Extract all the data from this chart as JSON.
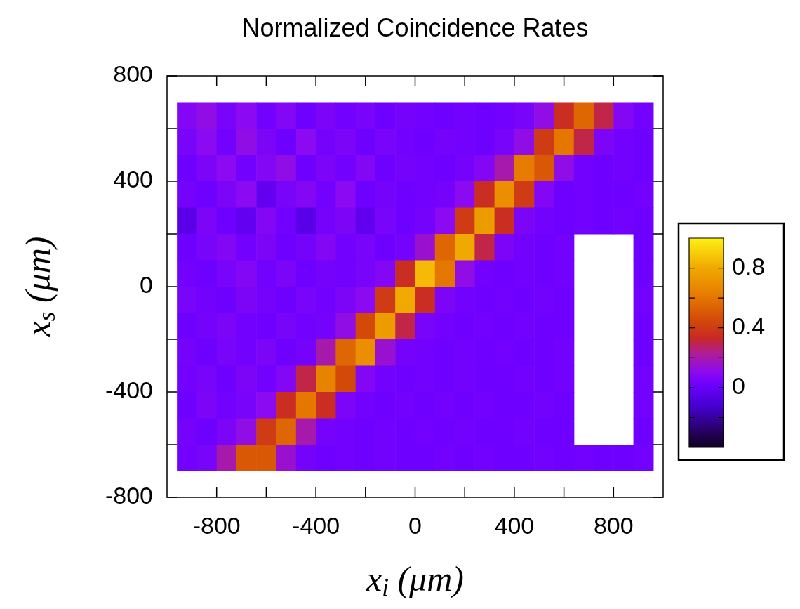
{
  "chart_data": {
    "type": "heatmap",
    "title": "Normalized Coincidence Rates",
    "xlabel": "x$_{i}$ (μm)",
    "ylabel": "x$_{s}$ (μm)",
    "x": [
      -920,
      -840,
      -760,
      -680,
      -600,
      -520,
      -440,
      -360,
      -280,
      -200,
      -120,
      -40,
      40,
      120,
      200,
      280,
      360,
      440,
      520,
      600,
      680,
      760,
      840,
      920
    ],
    "y": [
      650,
      550,
      450,
      350,
      250,
      150,
      50,
      -50,
      -150,
      -250,
      -350,
      -450,
      -550,
      -650
    ],
    "cells": [
      [
        0.08,
        0.12,
        0.05,
        0.1,
        0.03,
        0.08,
        0.02,
        0.06,
        0.03,
        0.05,
        0.02,
        0.04,
        0.03,
        0.02,
        0.03,
        0.02,
        0.03,
        0.05,
        0.12,
        0.35,
        0.55,
        0.3,
        0.08,
        0.03
      ],
      [
        0.05,
        0.1,
        0.03,
        0.12,
        0.06,
        0.02,
        0.1,
        0.04,
        0.06,
        0.02,
        0.05,
        0.03,
        0.02,
        0.04,
        0.03,
        0.02,
        0.05,
        0.12,
        0.4,
        0.6,
        0.3,
        0.06,
        0.03,
        0.02
      ],
      [
        0.02,
        0.06,
        0.1,
        0.03,
        0.08,
        0.12,
        0.02,
        0.06,
        0.03,
        0.08,
        0.02,
        0.04,
        0.03,
        0.02,
        0.04,
        0.08,
        0.2,
        0.62,
        0.5,
        0.12,
        0.03,
        0.02,
        0.03,
        0.02
      ],
      [
        0.04,
        0.02,
        0.06,
        0.1,
        -0.02,
        0.05,
        0.08,
        0.03,
        0.1,
        0.02,
        0.04,
        0.02,
        0.03,
        0.04,
        0.1,
        0.35,
        0.7,
        0.4,
        0.08,
        0.02,
        0.03,
        0.02,
        0.02,
        0.03
      ],
      [
        -0.05,
        0.06,
        0.02,
        -0.02,
        0.08,
        0.03,
        -0.05,
        0.04,
        0.06,
        -0.03,
        0.05,
        0.02,
        0.04,
        0.1,
        0.4,
        0.75,
        0.35,
        0.06,
        0.03,
        0.02,
        0.03,
        0.02,
        0.03,
        0.02
      ],
      [
        0.02,
        0.05,
        0.08,
        0.03,
        0.06,
        0.02,
        0.04,
        0.08,
        0.03,
        0.05,
        0.02,
        0.04,
        0.15,
        0.55,
        0.8,
        0.3,
        0.06,
        0.03,
        0.02,
        0.03,
        null,
        null,
        null,
        0.02
      ],
      [
        0.03,
        0.02,
        0.05,
        0.08,
        0.03,
        0.06,
        0.02,
        0.04,
        0.03,
        0.05,
        0.08,
        0.35,
        0.85,
        0.6,
        0.12,
        0.03,
        0.02,
        0.03,
        0.02,
        0.03,
        null,
        null,
        null,
        0.02
      ],
      [
        0.05,
        0.03,
        0.02,
        0.06,
        0.04,
        0.02,
        0.05,
        0.03,
        0.06,
        0.1,
        0.4,
        0.8,
        0.35,
        0.06,
        0.03,
        0.02,
        0.03,
        0.02,
        0.03,
        0.02,
        null,
        null,
        null,
        0.03
      ],
      [
        0.02,
        0.04,
        0.06,
        0.03,
        0.02,
        0.05,
        0.03,
        0.04,
        0.12,
        0.45,
        0.75,
        0.3,
        0.05,
        0.03,
        0.02,
        0.03,
        0.02,
        0.03,
        0.02,
        0.02,
        null,
        null,
        null,
        0.02
      ],
      [
        0.04,
        0.02,
        0.05,
        0.03,
        0.06,
        0.02,
        0.04,
        0.2,
        0.55,
        0.7,
        0.15,
        0.04,
        0.03,
        0.02,
        0.03,
        0.02,
        0.03,
        0.02,
        0.02,
        0.03,
        null,
        null,
        null,
        0.02
      ],
      [
        0.03,
        0.05,
        0.02,
        0.06,
        0.03,
        0.08,
        0.3,
        0.65,
        0.45,
        0.08,
        0.03,
        0.02,
        0.03,
        0.02,
        0.03,
        0.02,
        0.02,
        0.03,
        0.02,
        0.03,
        null,
        null,
        null,
        0.03
      ],
      [
        0.02,
        0.06,
        0.03,
        0.05,
        0.1,
        0.35,
        0.6,
        0.35,
        0.06,
        0.03,
        0.02,
        0.03,
        0.02,
        0.03,
        0.02,
        0.03,
        0.02,
        0.02,
        0.03,
        0.02,
        null,
        null,
        null,
        0.03
      ],
      [
        0.04,
        0.02,
        0.06,
        0.12,
        0.4,
        0.55,
        0.2,
        0.04,
        0.03,
        0.02,
        0.03,
        0.02,
        0.03,
        0.02,
        0.03,
        0.02,
        0.02,
        0.03,
        0.02,
        0.02,
        null,
        null,
        null,
        0.02
      ],
      [
        0.03,
        0.05,
        0.2,
        0.5,
        0.5,
        0.15,
        0.04,
        0.02,
        0.03,
        0.02,
        0.03,
        0.02,
        0.02,
        0.03,
        0.02,
        0.03,
        0.02,
        0.02,
        0.03,
        0.02,
        0.03,
        0.02,
        0.02,
        0.03
      ]
    ],
    "xlim": [
      -1000,
      1000
    ],
    "ylim": [
      -800,
      800
    ],
    "xticks": [
      -800,
      {
        "value": -600,
        "label": null
      },
      -400,
      {
        "value": -200,
        "label": null
      },
      0,
      {
        "value": 200,
        "label": null
      },
      400,
      {
        "value": 600,
        "label": null
      },
      800
    ],
    "yticks": [
      -800,
      {
        "value": -600,
        "label": null
      },
      -400,
      {
        "value": -200,
        "label": null
      },
      0,
      {
        "value": 200,
        "label": null
      },
      400,
      {
        "value": 600,
        "label": null
      },
      800
    ],
    "clim": [
      -0.4,
      1
    ],
    "cticks": [
      {
        "value": -0.2,
        "label": null
      },
      0,
      {
        "value": 0.2,
        "label": null
      },
      0.4,
      {
        "value": 0.6,
        "label": null
      },
      0.8
    ]
  }
}
